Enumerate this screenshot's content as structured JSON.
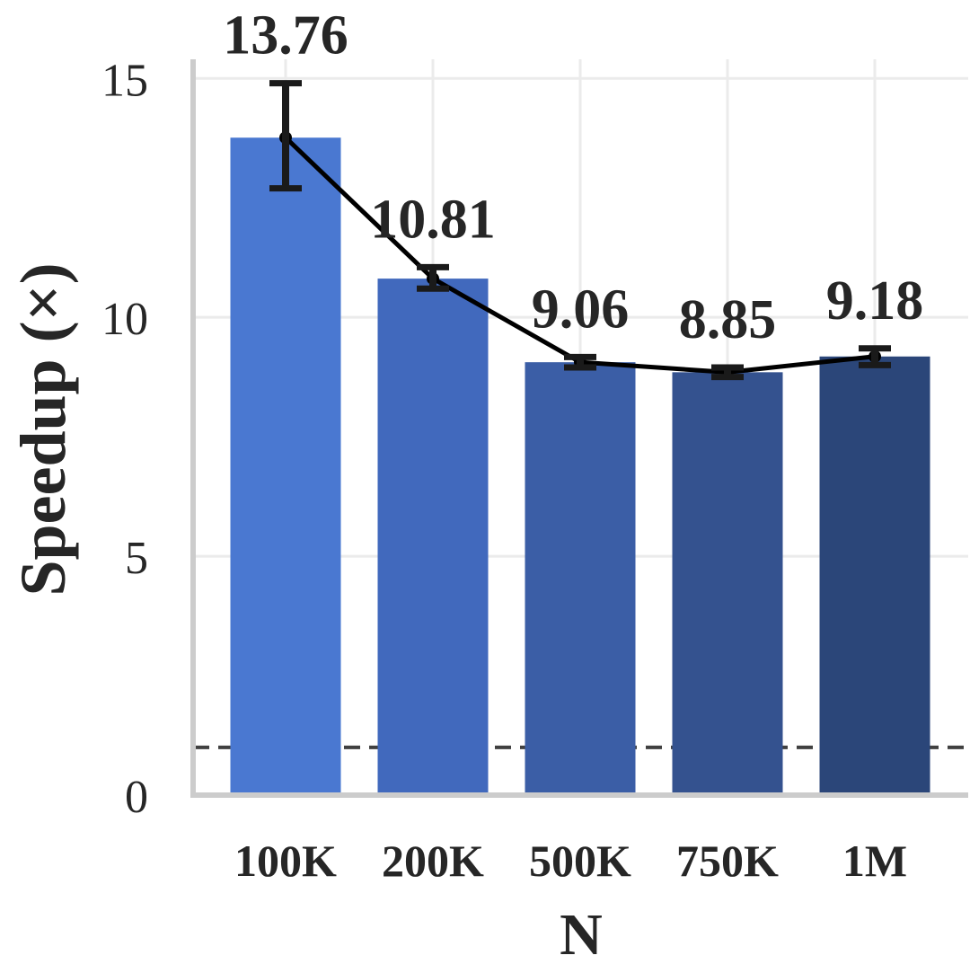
{
  "chart_data": {
    "type": "bar",
    "categories": [
      "100K",
      "200K",
      "500K",
      "750K",
      "1M"
    ],
    "values": [
      13.76,
      10.81,
      9.06,
      8.85,
      9.18
    ],
    "data_labels": [
      "13.76",
      "10.81",
      "9.06",
      "8.85",
      "9.18"
    ],
    "error_low": [
      12.7,
      10.6,
      8.95,
      8.75,
      9.0
    ],
    "error_high": [
      14.9,
      11.05,
      9.17,
      8.95,
      9.35
    ],
    "trend_line": true,
    "baseline": 1,
    "xlabel": "N",
    "ylabel": "Speedup (×)",
    "ylim": [
      0,
      15.4
    ],
    "yticks": [
      0,
      5,
      10,
      15
    ],
    "grid": true,
    "colors": {
      "bars": [
        "#4a78d1",
        "#4169bd",
        "#3b5ea6",
        "#34528f",
        "#2b4679"
      ],
      "line": "#000000",
      "error": "#1a1a1a",
      "baseline": "#404040",
      "grid": "#ebebeb",
      "axis": "#cccccc"
    }
  }
}
